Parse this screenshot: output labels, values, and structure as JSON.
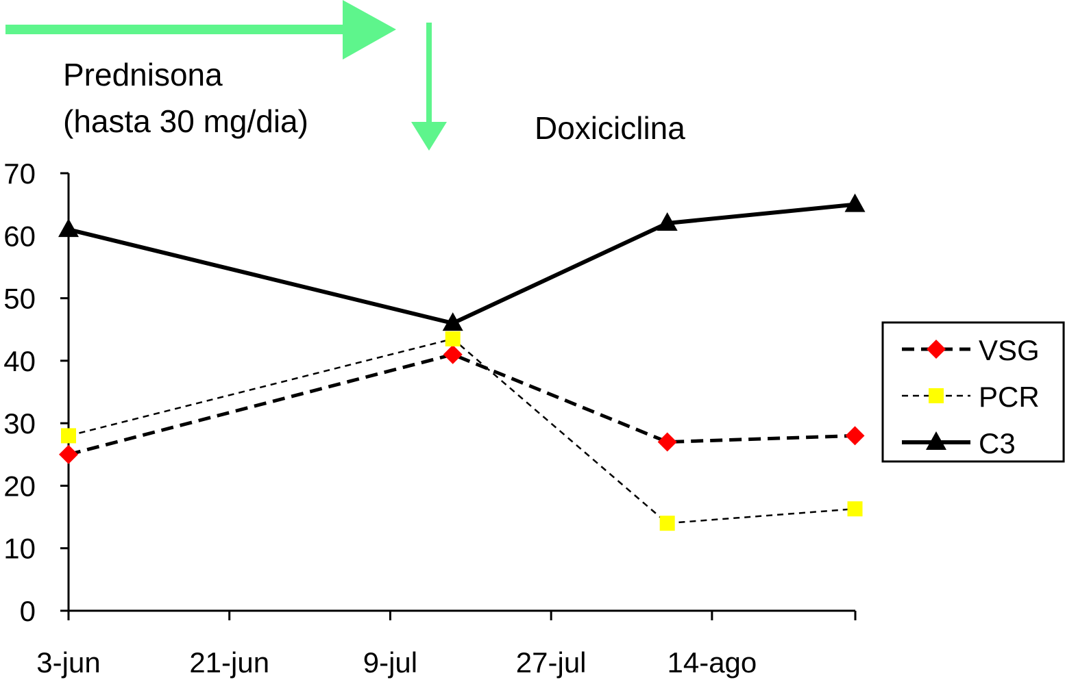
{
  "chart_data": {
    "type": "line",
    "title": "",
    "xlabel": "",
    "ylabel": "",
    "ylim": [
      0,
      70
    ],
    "yticks": [
      "0",
      "10",
      "20",
      "30",
      "40",
      "50",
      "60",
      "70"
    ],
    "xtick_labels": [
      "3-jun",
      "21-jun",
      "9-jul",
      "27-jul",
      "14-ago"
    ],
    "xtick_dates": [
      "06-03",
      "06-21",
      "07-09",
      "07-27",
      "08-14"
    ],
    "x": [
      "06-03",
      "07-16",
      "08-09",
      "08-30"
    ],
    "grid": false,
    "legend_position": "right",
    "series": [
      {
        "name": "VSG",
        "values": [
          25,
          41,
          27,
          28
        ],
        "color": "#000000",
        "marker": "diamond",
        "marker_color": "#ff0000",
        "line": "dashed-thick"
      },
      {
        "name": "PCR",
        "values": [
          28,
          43.5,
          14,
          16.3
        ],
        "color": "#000000",
        "marker": "square",
        "marker_color": "#ffff00",
        "line": "dashed-thin"
      },
      {
        "name": "C3",
        "values": [
          61,
          46,
          62,
          65
        ],
        "color": "#000000",
        "marker": "triangle",
        "marker_color": "#000000",
        "line": "solid"
      }
    ],
    "annotations": {
      "prednisona_line1": "Prednisona",
      "prednisona_line2": "(hasta 30 mg/dia)",
      "doxiciclina": "Doxiciclina",
      "arrow_color": "#5ef58c"
    }
  }
}
